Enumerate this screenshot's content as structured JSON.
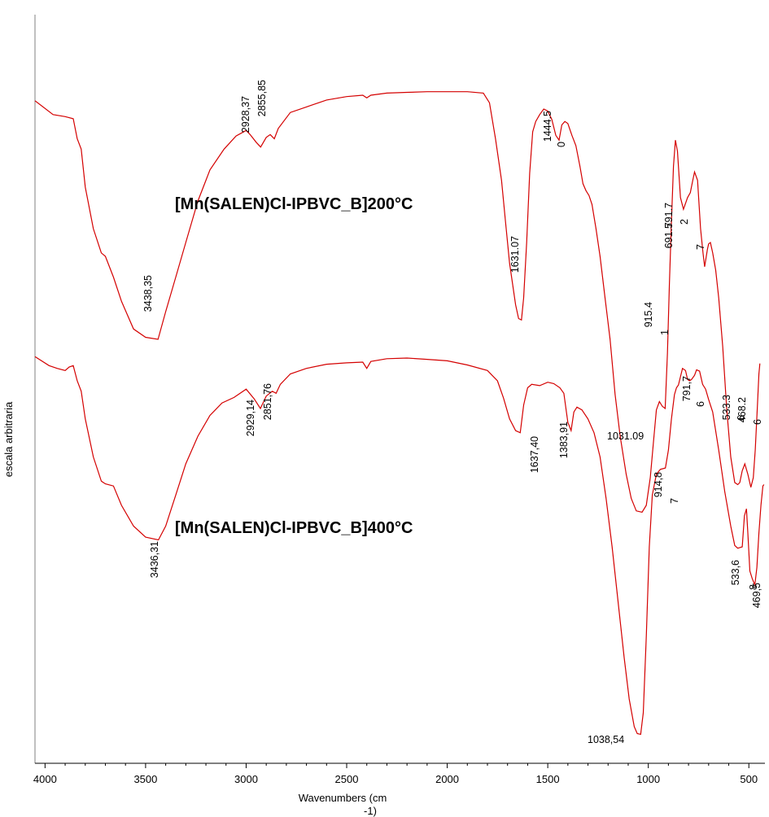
{
  "chart_data": {
    "type": "line",
    "title": "",
    "xlabel": "Wavenumbers (cm",
    "xlabel_sup": "-1)",
    "ylabel": "escala arbitraria",
    "xlim": [
      4050,
      420
    ],
    "x_reversed": true,
    "ylim": [
      0,
      100
    ],
    "grid": false,
    "xticks": [
      "4000",
      "3500",
      "3000",
      "2500",
      "2000",
      "1500",
      "1000",
      "500"
    ],
    "xtick_values": [
      4000,
      3500,
      3000,
      2500,
      2000,
      1500,
      1000,
      500
    ],
    "line_color": "#d40000",
    "series": [
      {
        "name": "[Mn(SALEN)Cl-IPBVC_B]200°C",
        "points": [
          [
            4050,
            92.5
          ],
          [
            3960,
            90.5
          ],
          [
            3900,
            90.2
          ],
          [
            3860,
            89.9
          ],
          [
            3840,
            87
          ],
          [
            3820,
            85.5
          ],
          [
            3800,
            80
          ],
          [
            3760,
            74
          ],
          [
            3720,
            70.5
          ],
          [
            3700,
            70
          ],
          [
            3660,
            67
          ],
          [
            3620,
            63.5
          ],
          [
            3560,
            59.5
          ],
          [
            3500,
            58.3
          ],
          [
            3438,
            58.0
          ],
          [
            3400,
            62
          ],
          [
            3350,
            67
          ],
          [
            3300,
            72
          ],
          [
            3240,
            78
          ],
          [
            3180,
            82.5
          ],
          [
            3110,
            85.5
          ],
          [
            3050,
            87.4
          ],
          [
            3000,
            88.2
          ],
          [
            2980,
            87.6
          ],
          [
            2950,
            86.5
          ],
          [
            2928,
            85.8
          ],
          [
            2900,
            87.2
          ],
          [
            2880,
            87.6
          ],
          [
            2860,
            87.0
          ],
          [
            2840,
            88.5
          ],
          [
            2780,
            90.8
          ],
          [
            2700,
            91.6
          ],
          [
            2600,
            92.6
          ],
          [
            2500,
            93.1
          ],
          [
            2420,
            93.3
          ],
          [
            2400,
            92.9
          ],
          [
            2380,
            93.3
          ],
          [
            2300,
            93.6
          ],
          [
            2200,
            93.7
          ],
          [
            2100,
            93.8
          ],
          [
            2000,
            93.8
          ],
          [
            1900,
            93.8
          ],
          [
            1820,
            93.6
          ],
          [
            1790,
            92.2
          ],
          [
            1760,
            87
          ],
          [
            1730,
            81
          ],
          [
            1710,
            75
          ],
          [
            1690,
            69
          ],
          [
            1660,
            63
          ],
          [
            1645,
            61
          ],
          [
            1631,
            60.8
          ],
          [
            1620,
            64
          ],
          [
            1605,
            72
          ],
          [
            1590,
            82
          ],
          [
            1575,
            88
          ],
          [
            1560,
            89.5
          ],
          [
            1540,
            90.5
          ],
          [
            1520,
            91.3
          ],
          [
            1500,
            91.0
          ],
          [
            1480,
            89.8
          ],
          [
            1460,
            87.5
          ],
          [
            1444,
            86.8
          ],
          [
            1430,
            89
          ],
          [
            1415,
            89.5
          ],
          [
            1400,
            89.2
          ],
          [
            1380,
            87.5
          ],
          [
            1360,
            86
          ],
          [
            1340,
            83
          ],
          [
            1325,
            80.5
          ],
          [
            1310,
            79.5
          ],
          [
            1295,
            78.8
          ],
          [
            1280,
            77.5
          ],
          [
            1260,
            74
          ],
          [
            1240,
            70
          ],
          [
            1215,
            64
          ],
          [
            1190,
            58
          ],
          [
            1165,
            50
          ],
          [
            1140,
            44
          ],
          [
            1110,
            38.5
          ],
          [
            1085,
            35
          ],
          [
            1060,
            33.2
          ],
          [
            1031,
            33.0
          ],
          [
            1010,
            34
          ],
          [
            990,
            38
          ],
          [
            975,
            43
          ],
          [
            960,
            47.8
          ],
          [
            945,
            49
          ],
          [
            930,
            48.3
          ],
          [
            916,
            48.0
          ],
          [
            905,
            56
          ],
          [
            895,
            66
          ],
          [
            885,
            75
          ],
          [
            875,
            83
          ],
          [
            865,
            86.8
          ],
          [
            855,
            85.2
          ],
          [
            840,
            78.5
          ],
          [
            825,
            76.8
          ],
          [
            805,
            78.5
          ],
          [
            791,
            79.2
          ],
          [
            780,
            80.8
          ],
          [
            770,
            82.2
          ],
          [
            755,
            81
          ],
          [
            740,
            74
          ],
          [
            728,
            70.5
          ],
          [
            720,
            68.5
          ],
          [
            706,
            71
          ],
          [
            700,
            71.8
          ],
          [
            691,
            72.0
          ],
          [
            680,
            70.5
          ],
          [
            665,
            68
          ],
          [
            650,
            64
          ],
          [
            630,
            57
          ],
          [
            610,
            48
          ],
          [
            590,
            41
          ],
          [
            570,
            37.3
          ],
          [
            555,
            37.0
          ],
          [
            545,
            37.3
          ],
          [
            533,
            39.0
          ],
          [
            520,
            40.0
          ],
          [
            505,
            38.5
          ],
          [
            490,
            36.6
          ],
          [
            478,
            38
          ],
          [
            468,
            42
          ],
          [
            458,
            48
          ],
          [
            450,
            53
          ],
          [
            445,
            54.5
          ]
        ]
      },
      {
        "name": "[Mn(SALEN)Cl-IPBVC_B]400°C",
        "points": [
          [
            4050,
            55.5
          ],
          [
            3980,
            54.2
          ],
          [
            3940,
            53.8
          ],
          [
            3900,
            53.5
          ],
          [
            3880,
            54.0
          ],
          [
            3860,
            54.2
          ],
          [
            3840,
            52
          ],
          [
            3820,
            50.5
          ],
          [
            3800,
            46.5
          ],
          [
            3760,
            41
          ],
          [
            3720,
            37.5
          ],
          [
            3700,
            37.1
          ],
          [
            3660,
            36.8
          ],
          [
            3620,
            34
          ],
          [
            3560,
            31
          ],
          [
            3500,
            29.4
          ],
          [
            3436,
            29.0
          ],
          [
            3400,
            31
          ],
          [
            3350,
            35.5
          ],
          [
            3300,
            40
          ],
          [
            3240,
            44
          ],
          [
            3180,
            47
          ],
          [
            3120,
            48.8
          ],
          [
            3060,
            49.6
          ],
          [
            3000,
            50.8
          ],
          [
            2960,
            49.4
          ],
          [
            2929,
            48.0
          ],
          [
            2900,
            49.8
          ],
          [
            2870,
            50.5
          ],
          [
            2851,
            50.2
          ],
          [
            2830,
            51.5
          ],
          [
            2780,
            53.0
          ],
          [
            2700,
            53.8
          ],
          [
            2600,
            54.4
          ],
          [
            2500,
            54.6
          ],
          [
            2420,
            54.7
          ],
          [
            2400,
            53.8
          ],
          [
            2380,
            54.8
          ],
          [
            2300,
            55.2
          ],
          [
            2200,
            55.3
          ],
          [
            2100,
            55.1
          ],
          [
            2000,
            54.9
          ],
          [
            1900,
            54.3
          ],
          [
            1800,
            53.5
          ],
          [
            1750,
            52
          ],
          [
            1720,
            49.5
          ],
          [
            1690,
            46.5
          ],
          [
            1660,
            44.8
          ],
          [
            1637,
            44.5
          ],
          [
            1620,
            48.5
          ],
          [
            1600,
            51
          ],
          [
            1580,
            51.5
          ],
          [
            1540,
            51.3
          ],
          [
            1500,
            51.8
          ],
          [
            1470,
            51.6
          ],
          [
            1440,
            51.0
          ],
          [
            1420,
            50.2
          ],
          [
            1400,
            46
          ],
          [
            1384,
            44.8
          ],
          [
            1370,
            47.5
          ],
          [
            1355,
            48.2
          ],
          [
            1330,
            47.8
          ],
          [
            1300,
            46.5
          ],
          [
            1270,
            44.5
          ],
          [
            1240,
            41
          ],
          [
            1210,
            35
          ],
          [
            1180,
            28
          ],
          [
            1150,
            20
          ],
          [
            1120,
            12
          ],
          [
            1095,
            6
          ],
          [
            1070,
            2.0
          ],
          [
            1055,
            1.0
          ],
          [
            1038,
            0.9
          ],
          [
            1025,
            4
          ],
          [
            1010,
            15
          ],
          [
            995,
            28
          ],
          [
            980,
            35.5
          ],
          [
            960,
            38.5
          ],
          [
            940,
            39.2
          ],
          [
            915,
            39.4
          ],
          [
            900,
            42
          ],
          [
            885,
            46.5
          ],
          [
            870,
            50
          ],
          [
            860,
            51.0
          ],
          [
            850,
            51.4
          ],
          [
            830,
            53.8
          ],
          [
            815,
            53.5
          ],
          [
            805,
            52.2
          ],
          [
            795,
            52.0
          ],
          [
            785,
            52.2
          ],
          [
            770,
            52.8
          ],
          [
            760,
            53.6
          ],
          [
            745,
            53.4
          ],
          [
            730,
            51.5
          ],
          [
            715,
            50.8
          ],
          [
            700,
            49.3
          ],
          [
            680,
            47.5
          ],
          [
            650,
            42
          ],
          [
            620,
            36
          ],
          [
            590,
            31
          ],
          [
            570,
            28.2
          ],
          [
            555,
            27.8
          ],
          [
            545,
            27.9
          ],
          [
            533,
            28.0
          ],
          [
            522,
            32.5
          ],
          [
            512,
            33.5
          ],
          [
            505,
            30
          ],
          [
            495,
            24.5
          ],
          [
            483,
            23.4
          ],
          [
            470,
            22.5
          ],
          [
            460,
            25
          ],
          [
            450,
            30
          ],
          [
            440,
            34
          ],
          [
            430,
            36.8
          ],
          [
            425,
            37.0
          ]
        ]
      }
    ],
    "labels_200": [
      {
        "text": "3438,35",
        "wn": 3438
      },
      {
        "text": "2928,37",
        "wn": 2928
      },
      {
        "text": "2855,85",
        "wn": 2856
      },
      {
        "text": "1631.07",
        "wn": 1631
      },
      {
        "text": "1444.5",
        "wn": 1445
      },
      {
        "text": "0",
        "wn": 1444
      },
      {
        "text": "915.4",
        "wn": 915
      },
      {
        "text": "1",
        "wn": 914
      },
      {
        "text": "791.7",
        "wn": 792
      },
      {
        "text": "2",
        "wn": 791
      },
      {
        "text": "691.5",
        "wn": 691
      },
      {
        "text": "7",
        "wn": 690
      },
      {
        "text": "1031.09",
        "wn": 1031
      },
      {
        "text": "533.3",
        "wn": 533
      },
      {
        "text": "6",
        "wn": 532
      },
      {
        "text": "468.2",
        "wn": 468
      },
      {
        "text": "6",
        "wn": 467
      }
    ],
    "labels_400": [
      {
        "text": "3436,31",
        "wn": 3436
      },
      {
        "text": "2929,14",
        "wn": 2929
      },
      {
        "text": "2851,76",
        "wn": 2852
      },
      {
        "text": "1637,40",
        "wn": 1637
      },
      {
        "text": "1383,91",
        "wn": 1384
      },
      {
        "text": "1038,54",
        "wn": 1038
      },
      {
        "text": "914,8",
        "wn": 915
      },
      {
        "text": "7",
        "wn": 914
      },
      {
        "text": "791,7",
        "wn": 792
      },
      {
        "text": "6",
        "wn": 791
      },
      {
        "text": "533,6",
        "wn": 534
      },
      {
        "text": "469,5",
        "wn": 470
      },
      {
        "text": "8",
        "wn": 469
      }
    ]
  }
}
